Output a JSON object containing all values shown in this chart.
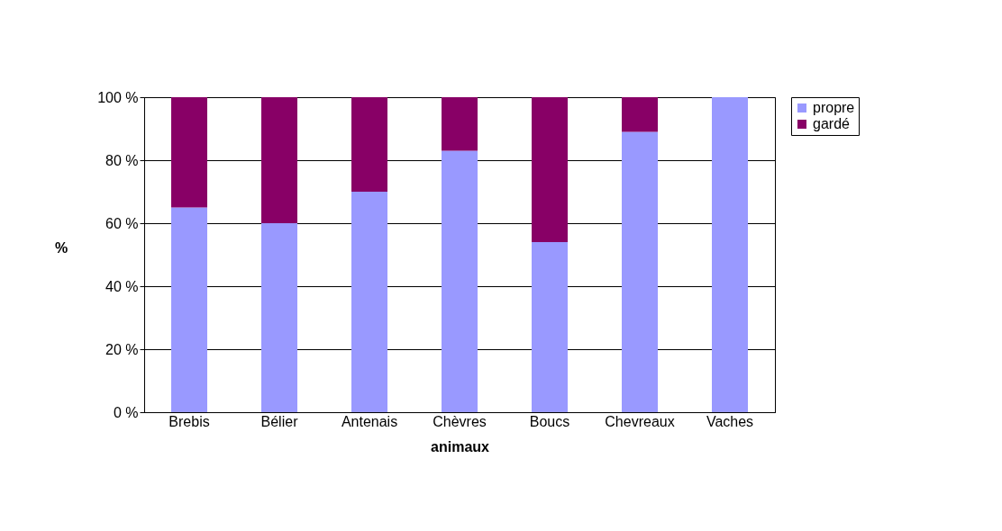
{
  "chart_data": {
    "type": "bar",
    "stacked": true,
    "xlabel": "animaux",
    "ylabel": "%",
    "categories": [
      "Brebis",
      "Bélier",
      "Antenais",
      "Chèvres",
      "Boucs",
      "Chevreaux",
      "Vaches"
    ],
    "series": [
      {
        "name": "propre",
        "color": "#9999ff",
        "values": [
          65,
          60,
          70,
          83,
          54,
          89,
          100
        ]
      },
      {
        "name": "gardé",
        "color": "#880066",
        "values": [
          35,
          40,
          30,
          17,
          46,
          11,
          0
        ]
      }
    ],
    "ylim": [
      0,
      100
    ],
    "yticks": [
      {
        "value": 0,
        "label": "0 %"
      },
      {
        "value": 20,
        "label": "20 %"
      },
      {
        "value": 40,
        "label": "40 %"
      },
      {
        "value": 60,
        "label": "60 %"
      },
      {
        "value": 80,
        "label": "80 %"
      },
      {
        "value": 100,
        "label": "100 %"
      }
    ],
    "grid": "y",
    "legend": "top right"
  }
}
